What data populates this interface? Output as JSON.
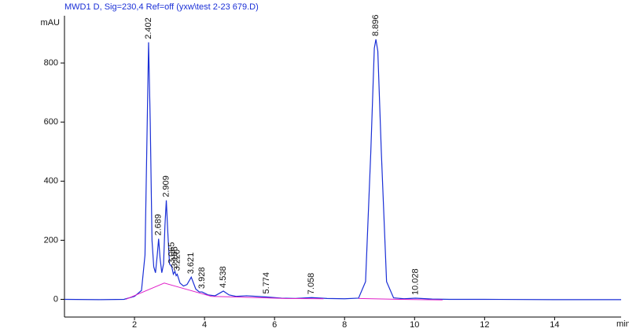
{
  "chart_data": {
    "type": "line",
    "title": "MWD1 D, Sig=230,4 Ref=off (yxw\\test 2-23 679.D)",
    "y_label": "mAU",
    "x_label": "min",
    "xlim": [
      0,
      15.9
    ],
    "ylim": [
      -60,
      960
    ],
    "xticks": [
      2,
      4,
      6,
      8,
      10,
      12,
      14
    ],
    "yticks": [
      0,
      200,
      400,
      600,
      800
    ],
    "series": [
      {
        "color": "#1a2fd6",
        "x": [
          0,
          1.0,
          1.7,
          2.0,
          2.2,
          2.3,
          2.35,
          2.402,
          2.45,
          2.5,
          2.55,
          2.6,
          2.65,
          2.689,
          2.73,
          2.78,
          2.83,
          2.87,
          2.909,
          2.95,
          3.0,
          3.065,
          3.11,
          3.155,
          3.19,
          3.22,
          3.3,
          3.4,
          3.5,
          3.621,
          3.75,
          3.85,
          3.928,
          4.1,
          4.3,
          4.45,
          4.538,
          4.7,
          4.9,
          5.2,
          5.5,
          5.774,
          6.2,
          6.6,
          7.058,
          7.5,
          8.0,
          8.4,
          8.6,
          8.75,
          8.85,
          8.896,
          8.95,
          9.05,
          9.2,
          9.4,
          9.7,
          10.028,
          10.5,
          11,
          12,
          14,
          15.9
        ],
        "values": [
          0,
          -1,
          0,
          10,
          30,
          150,
          500,
          870,
          600,
          200,
          110,
          90,
          150,
          205,
          140,
          90,
          120,
          250,
          335,
          230,
          120,
          110,
          85,
          95,
          80,
          85,
          55,
          45,
          50,
          75,
          35,
          25,
          25,
          15,
          12,
          22,
          28,
          15,
          10,
          12,
          10,
          8,
          4,
          3,
          6,
          3,
          2,
          4,
          60,
          500,
          850,
          880,
          840,
          500,
          60,
          5,
          2,
          4,
          1,
          0,
          0,
          -1,
          -1
        ]
      },
      {
        "color": "#e020c8",
        "x": [
          1.75,
          2.85,
          3.3,
          4.2,
          4.9,
          6.3,
          7.4,
          7.5,
          8.4,
          9.6,
          10.8
        ],
        "values": [
          0,
          55,
          40,
          10,
          8,
          3,
          2,
          null,
          3,
          0,
          -2
        ]
      }
    ],
    "peaks": [
      {
        "time": 2.402,
        "height": 870,
        "label": "2.402"
      },
      {
        "time": 2.689,
        "height": 205,
        "label": "2.689"
      },
      {
        "time": 2.909,
        "height": 335,
        "label": "2.909"
      },
      {
        "time": 3.065,
        "height": 110,
        "label": "3.065"
      },
      {
        "time": 3.155,
        "height": 95,
        "label": "3.155"
      },
      {
        "time": 3.22,
        "height": 85,
        "label": "3.220"
      },
      {
        "time": 3.621,
        "height": 75,
        "label": "3.621"
      },
      {
        "time": 3.928,
        "height": 25,
        "label": "3.928"
      },
      {
        "time": 4.538,
        "height": 28,
        "label": "4.538"
      },
      {
        "time": 5.774,
        "height": 8,
        "label": "5.774"
      },
      {
        "time": 7.058,
        "height": 6,
        "label": "7.058"
      },
      {
        "time": 8.896,
        "height": 880,
        "label": "8.896"
      },
      {
        "time": 10.028,
        "height": 4,
        "label": "10.028"
      }
    ]
  }
}
